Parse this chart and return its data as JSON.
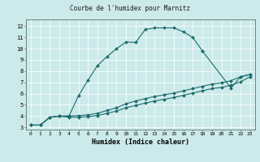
{
  "title": "Courbe de l'humidex pour Marnitz",
  "xlabel": "Humidex (Indice chaleur)",
  "bg_color": "#cceaea",
  "line_color": "#1a6b6b",
  "xlim": [
    -0.5,
    23.5
  ],
  "ylim": [
    2.8,
    12.6
  ],
  "xticks": [
    0,
    1,
    2,
    3,
    4,
    5,
    6,
    7,
    8,
    9,
    10,
    11,
    12,
    13,
    14,
    15,
    16,
    17,
    18,
    19,
    20,
    21,
    22,
    23
  ],
  "yticks": [
    3,
    4,
    5,
    6,
    7,
    8,
    9,
    10,
    11,
    12
  ],
  "curve1_x": [
    0,
    1,
    2,
    3,
    4,
    5,
    6,
    7,
    8,
    9,
    10,
    11,
    12,
    13,
    14,
    15,
    16,
    17,
    18
  ],
  "curve1_y": [
    3.2,
    3.2,
    3.9,
    4.0,
    4.0,
    5.8,
    7.2,
    8.5,
    9.3,
    10.0,
    10.6,
    10.55,
    11.7,
    11.85,
    11.85,
    11.85,
    11.5,
    11.0,
    9.8
  ],
  "curve2_x": [
    18,
    21,
    22,
    23
  ],
  "curve2_y": [
    9.8,
    6.5,
    7.5,
    7.7
  ],
  "line1_x": [
    0,
    1,
    2,
    3,
    4,
    5,
    6,
    7,
    8,
    9,
    10,
    11,
    12,
    13,
    14,
    15,
    16,
    17,
    18,
    19,
    20,
    21,
    22,
    23
  ],
  "line1_y": [
    3.2,
    3.2,
    3.9,
    4.0,
    4.0,
    4.05,
    4.1,
    4.25,
    4.5,
    4.75,
    5.1,
    5.35,
    5.55,
    5.75,
    5.9,
    6.05,
    6.25,
    6.45,
    6.65,
    6.85,
    6.95,
    7.15,
    7.5,
    7.7
  ],
  "line2_x": [
    0,
    1,
    2,
    3,
    4,
    5,
    6,
    7,
    8,
    9,
    10,
    11,
    12,
    13,
    14,
    15,
    16,
    17,
    18,
    19,
    20,
    21,
    22,
    23
  ],
  "line2_y": [
    3.2,
    3.2,
    3.9,
    4.0,
    3.9,
    3.9,
    3.95,
    4.05,
    4.25,
    4.45,
    4.75,
    4.95,
    5.15,
    5.35,
    5.5,
    5.65,
    5.85,
    6.05,
    6.25,
    6.45,
    6.55,
    6.75,
    7.05,
    7.5
  ]
}
